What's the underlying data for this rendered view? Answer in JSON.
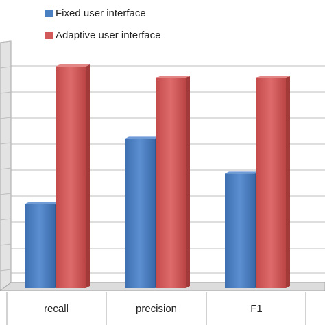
{
  "chart_data": {
    "type": "bar",
    "categories": [
      "recall",
      "precision",
      "F1"
    ],
    "series": [
      {
        "name": "Fixed user interface",
        "values": [
          0.36,
          0.64,
          0.49
        ],
        "color": "#4a7fc1"
      },
      {
        "name": "Adaptive user interface",
        "values": [
          0.95,
          0.9,
          0.9
        ],
        "color": "#d35a5a"
      }
    ],
    "ylim": [
      0,
      1
    ],
    "grid": true,
    "legend_position": "top",
    "title": "",
    "xlabel": "",
    "ylabel": ""
  }
}
